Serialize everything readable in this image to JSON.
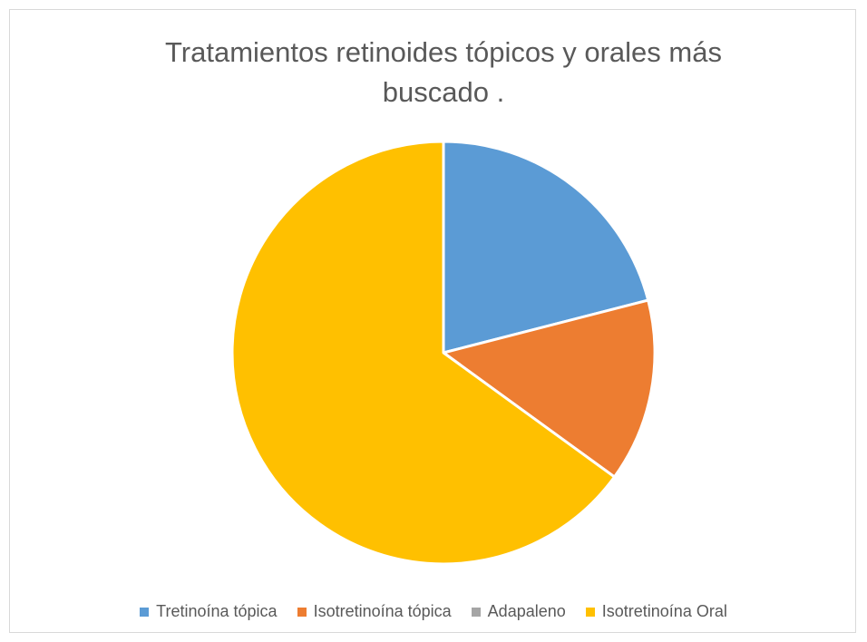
{
  "chart_data": {
    "type": "pie",
    "title": "Tratamientos retinoides tópicos y orales más buscado .",
    "categories": [
      "Tretinoína tópica",
      "Isotretinoína tópica",
      "Adapaleno",
      "Isotretinoína Oral"
    ],
    "values": [
      21,
      14,
      0,
      65
    ],
    "colors": [
      "#5b9bd5",
      "#ed7d31",
      "#a5a5a5",
      "#ffc000"
    ],
    "legend": "bottom"
  }
}
